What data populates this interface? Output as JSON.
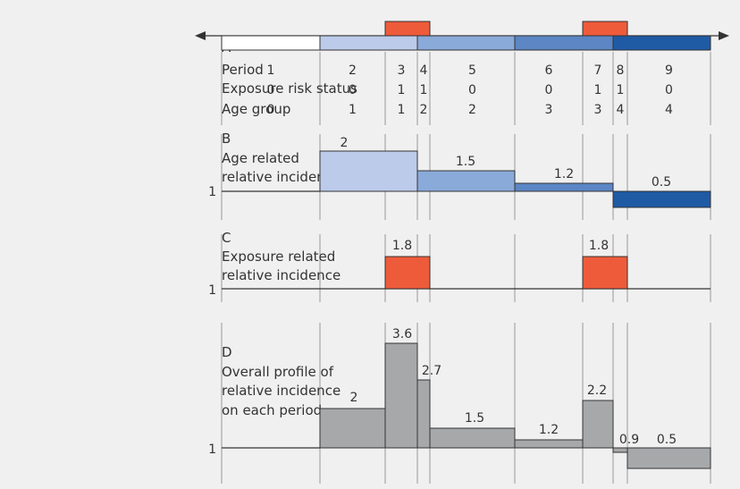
{
  "colors": {
    "background": "#f0f0f0",
    "age_1": "#bccbea",
    "age_2": "#8aaad9",
    "age_3": "#5c86c4",
    "age_4": "#1f5aa5",
    "exposure": "#ee5b3b",
    "overall": "#a7a8aa",
    "line": "#333333",
    "grid": "#999999"
  },
  "panel_a": {
    "letter": "A",
    "row_labels": [
      "Period",
      "Exposure risk status",
      "Age group"
    ],
    "periods": [
      {
        "period": "1",
        "exposure": "0",
        "age": "0"
      },
      {
        "period": "2",
        "exposure": "0",
        "age": "1"
      },
      {
        "period": "3",
        "exposure": "1",
        "age": "1"
      },
      {
        "period": "4",
        "exposure": "1",
        "age": "2"
      },
      {
        "period": "5",
        "exposure": "0",
        "age": "2"
      },
      {
        "period": "6",
        "exposure": "0",
        "age": "3"
      },
      {
        "period": "7",
        "exposure": "1",
        "age": "3"
      },
      {
        "period": "8",
        "exposure": "1",
        "age": "4"
      },
      {
        "period": "9",
        "exposure": "0",
        "age": "4"
      }
    ]
  },
  "panel_b": {
    "letter": "B",
    "title_lines": [
      "Age related",
      "relative incidence"
    ],
    "baseline_label": "1",
    "values": [
      {
        "age_group": 1,
        "value": 2,
        "label": "2"
      },
      {
        "age_group": 2,
        "value": 1.5,
        "label": "1.5"
      },
      {
        "age_group": 3,
        "value": 1.2,
        "label": "1.2"
      },
      {
        "age_group": 4,
        "value": 0.5,
        "label": "0.5"
      }
    ]
  },
  "panel_c": {
    "letter": "C",
    "title_lines": [
      "Exposure related",
      "relative incidence"
    ],
    "baseline_label": "1",
    "values": [
      {
        "episode": 1,
        "value": 1.8,
        "label": "1.8"
      },
      {
        "episode": 2,
        "value": 1.8,
        "label": "1.8"
      }
    ]
  },
  "panel_d": {
    "letter": "D",
    "title_lines": [
      "Overall profile of",
      "relative incidence",
      "on each period"
    ],
    "baseline_label": "1",
    "values": [
      {
        "period": 2,
        "value": 2,
        "label": "2"
      },
      {
        "period": 3,
        "value": 3.6,
        "label": "3.6"
      },
      {
        "period": 4,
        "value": 2.7,
        "label": "2.7"
      },
      {
        "period": 5,
        "value": 1.5,
        "label": "1.5"
      },
      {
        "period": 6,
        "value": 1.2,
        "label": "1.2"
      },
      {
        "period": 7,
        "value": 2.2,
        "label": "2.2"
      },
      {
        "period": 8,
        "value": 0.9,
        "label": "0.9"
      },
      {
        "period": 9,
        "value": 0.5,
        "label": "0.5"
      }
    ]
  }
}
